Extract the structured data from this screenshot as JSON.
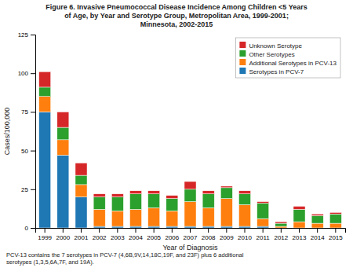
{
  "chart_data": {
    "type": "bar",
    "stacked": true,
    "title": "Figure 6. Invasive Pneumococcal Disease Incidence Among Children <5 Years\nof Age, by Year and Serotype Group, Metropolitan Area, 1999-2001;\nMinnesota, 2002-2015",
    "xlabel": "Year of Diagnosis",
    "ylabel": "Cases/100,000",
    "categories": [
      "1999",
      "2000",
      "2001",
      "2002",
      "2003",
      "2004",
      "2005",
      "2006",
      "2007",
      "2008",
      "2009",
      "2010",
      "2011",
      "2012",
      "2013",
      "2014",
      "2015"
    ],
    "series": [
      {
        "name": "Serotypes in PCV-7",
        "values": [
          75,
          47,
          20,
          1,
          1,
          1,
          1,
          1,
          1,
          1,
          1,
          1,
          1,
          0,
          0,
          0,
          0
        ]
      },
      {
        "name": "Additional Serotypes in PCV-13",
        "values": [
          10,
          10,
          8,
          11,
          10,
          11,
          12,
          10,
          16,
          12,
          18,
          14,
          5,
          1,
          4,
          3,
          3
        ]
      },
      {
        "name": "Other Serotypes",
        "values": [
          6,
          8,
          6,
          8,
          9,
          10,
          9,
          8,
          8,
          9,
          7,
          7,
          10,
          2,
          8,
          5,
          6
        ]
      },
      {
        "name": "Unknown Serotype",
        "values": [
          10,
          10,
          8,
          2,
          2,
          2,
          2,
          2,
          5,
          2,
          1,
          2,
          1,
          1,
          2,
          1,
          1
        ]
      }
    ],
    "ylim": [
      0,
      125
    ],
    "yticks": [
      0,
      25,
      50,
      75,
      100,
      125
    ],
    "grid": false,
    "legend": "upper right",
    "annotations": [
      "PCV-13 contains the 7 serotypes in PCV-7 (4,6B,9V,14,18C,19F, and 23F) plus 6 additional\nserotypes (1,3,5,6A,7F, and 19A)."
    ]
  }
}
